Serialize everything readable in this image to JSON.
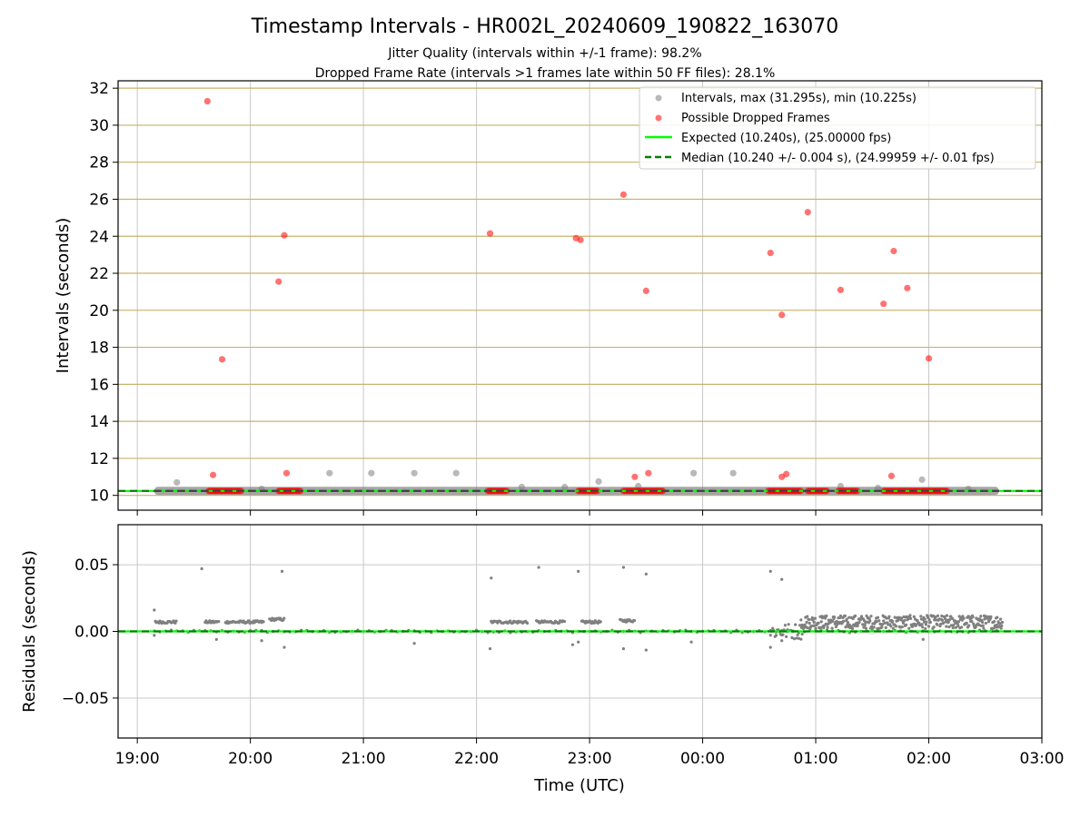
{
  "figure": {
    "title": "Timestamp Intervals - HR002L_20240609_190822_163070",
    "subtitle_1": "Jitter Quality (intervals within +/-1 frame): 98.2%",
    "subtitle_2": "Dropped Frame Rate (intervals >1 frames late within 50 FF files): 28.1%"
  },
  "legend": {
    "intervals": "Intervals, max (31.295s), min (10.225s)",
    "dropped": "Possible Dropped Frames",
    "expected": "Expected (10.240s), (25.00000 fps)",
    "median": "Median (10.240 +/- 0.004 s), (24.99959 +/- 0.01 fps)"
  },
  "colors": {
    "intervals": "#808080",
    "dropped": "#ff0000",
    "expected": "#00ff00",
    "median": "#008000",
    "median_band": "#404040",
    "hgrid": "#c8b26a",
    "vgrid": "#c8c8c8"
  },
  "chart_data": [
    {
      "type": "scatter",
      "ylabel": "Intervals (seconds)",
      "xlabel": "",
      "xlim_hours": [
        18.83,
        27.0
      ],
      "ylim": [
        9.2,
        32.4
      ],
      "yticks": [
        10,
        12,
        14,
        16,
        18,
        20,
        22,
        24,
        26,
        28,
        30,
        32
      ],
      "ytick_labels": [
        "10",
        "12",
        "14",
        "16",
        "18",
        "20",
        "22",
        "24",
        "26",
        "28",
        "30",
        "32"
      ],
      "grid": "horizontal and vertical",
      "legend_position": "top-right",
      "expected_value": 10.24,
      "median_value": 10.24,
      "baseline_range_hours": [
        19.15,
        26.62
      ],
      "series": [
        {
          "name": "Intervals, max (31.295s), min (10.225s)",
          "points": [
            [
              19.35,
              10.7
            ],
            [
              20.1,
              10.35
            ],
            [
              20.7,
              11.2
            ],
            [
              21.07,
              11.2
            ],
            [
              21.45,
              11.2
            ],
            [
              21.82,
              11.2
            ],
            [
              22.4,
              10.45
            ],
            [
              22.78,
              10.45
            ],
            [
              23.08,
              10.75
            ],
            [
              23.43,
              10.5
            ],
            [
              23.92,
              11.2
            ],
            [
              24.27,
              11.2
            ],
            [
              25.22,
              10.5
            ],
            [
              25.55,
              10.4
            ],
            [
              25.94,
              10.85
            ],
            [
              26.35,
              10.35
            ]
          ]
        },
        {
          "name": "Possible Dropped Frames",
          "points": [
            [
              19.62,
              31.295
            ],
            [
              19.75,
              17.35
            ],
            [
              19.67,
              11.1
            ],
            [
              20.25,
              21.55
            ],
            [
              20.3,
              24.05
            ],
            [
              20.32,
              11.2
            ],
            [
              22.12,
              24.15
            ],
            [
              22.88,
              23.9
            ],
            [
              22.92,
              23.8
            ],
            [
              23.3,
              26.25
            ],
            [
              23.4,
              11.0
            ],
            [
              23.5,
              21.05
            ],
            [
              23.52,
              11.2
            ],
            [
              24.6,
              23.1
            ],
            [
              24.7,
              19.75
            ],
            [
              24.7,
              11.0
            ],
            [
              24.74,
              11.15
            ],
            [
              24.93,
              25.3
            ],
            [
              25.22,
              21.1
            ],
            [
              25.6,
              20.35
            ],
            [
              25.67,
              11.05
            ],
            [
              25.69,
              23.2
            ],
            [
              25.81,
              21.2
            ],
            [
              26.0,
              17.4
            ]
          ],
          "dense_runs_at_10_24": [
            [
              19.63,
              19.92
            ],
            [
              20.25,
              20.45
            ],
            [
              22.1,
              22.27
            ],
            [
              22.9,
              23.07
            ],
            [
              23.3,
              23.47
            ],
            [
              23.48,
              23.65
            ],
            [
              24.58,
              24.87
            ],
            [
              24.93,
              25.1
            ],
            [
              25.2,
              25.38
            ],
            [
              25.6,
              25.98
            ],
            [
              25.98,
              26.17
            ]
          ]
        },
        {
          "name": "Expected (10.240s), (25.00000 fps)",
          "value": 10.24
        },
        {
          "name": "Median (10.240 +/- 0.004 s), (24.99959 +/- 0.01 fps)",
          "value": 10.24
        }
      ]
    },
    {
      "type": "scatter",
      "xlabel": "Time (UTC)",
      "ylabel": "Residuals (seconds)",
      "xlim_hours": [
        18.83,
        27.0
      ],
      "ylim": [
        -0.08,
        0.08
      ],
      "yticks": [
        -0.05,
        0.0,
        0.05
      ],
      "ytick_labels": [
        "−0.05",
        "0.00",
        "0.05"
      ],
      "xticks_hours": [
        19,
        20,
        21,
        22,
        23,
        24,
        25,
        26,
        27
      ],
      "xtick_labels": [
        "19:00",
        "20:00",
        "21:00",
        "22:00",
        "23:00",
        "00:00",
        "01:00",
        "02:00",
        "03:00"
      ],
      "grid": "horizontal and vertical",
      "series": [
        {
          "name": "Residuals",
          "outliers": [
            [
              19.15,
              0.016
            ],
            [
              19.57,
              0.047
            ],
            [
              20.28,
              0.045
            ],
            [
              22.13,
              0.04
            ],
            [
              22.55,
              0.048
            ],
            [
              22.9,
              0.045
            ],
            [
              23.3,
              0.048
            ],
            [
              23.5,
              0.043
            ],
            [
              24.6,
              0.045
            ],
            [
              24.7,
              0.039
            ],
            [
              19.15,
              -0.003
            ],
            [
              19.7,
              -0.006
            ],
            [
              20.1,
              -0.007
            ],
            [
              20.3,
              -0.012
            ],
            [
              21.45,
              -0.009
            ],
            [
              22.12,
              -0.013
            ],
            [
              22.85,
              -0.01
            ],
            [
              22.9,
              -0.008
            ],
            [
              23.3,
              -0.013
            ],
            [
              23.5,
              -0.014
            ],
            [
              23.9,
              -0.008
            ],
            [
              24.6,
              -0.012
            ],
            [
              24.7,
              -0.007
            ],
            [
              25.95,
              -0.006
            ]
          ],
          "clusters": [
            {
              "range": [
                19.16,
                19.35
              ],
              "value": 0.007
            },
            {
              "range": [
                19.6,
                19.72
              ],
              "value": 0.007
            },
            {
              "range": [
                19.78,
                20.12
              ],
              "value": 0.007
            },
            {
              "range": [
                20.17,
                20.3
              ],
              "value": 0.009
            },
            {
              "range": [
                22.13,
                22.45
              ],
              "value": 0.007
            },
            {
              "range": [
                22.53,
                22.78
              ],
              "value": 0.007
            },
            {
              "range": [
                22.93,
                23.1
              ],
              "value": 0.007
            },
            {
              "range": [
                23.27,
                23.4
              ],
              "value": 0.008
            }
          ],
          "noisy_band": {
            "range": [
              24.87,
              26.65
            ],
            "mean": 0.007,
            "spread": 0.005
          }
        },
        {
          "name": "Expected",
          "value": 0.0
        },
        {
          "name": "Median",
          "value": 0.0
        }
      ]
    }
  ]
}
